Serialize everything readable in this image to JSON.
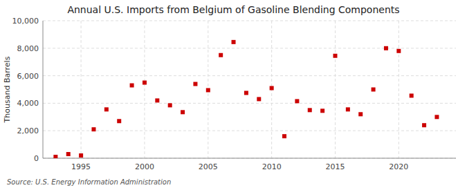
{
  "chart_data": {
    "type": "scatter",
    "title": "Annual U.S. Imports from Belgium of Gasoline Blending Components",
    "y_label": "Thousand Barrels",
    "annotation": "Source: U.S. Energy Information Administration",
    "x": [
      1993,
      1994,
      1995,
      1996,
      1997,
      1998,
      1999,
      2000,
      2001,
      2002,
      2003,
      2004,
      2005,
      2006,
      2007,
      2008,
      2009,
      2010,
      2011,
      2012,
      2013,
      2014,
      2015,
      2016,
      2017,
      2018,
      2019,
      2020,
      2021,
      2022,
      2023
    ],
    "values": [
      100,
      300,
      200,
      2100,
      3550,
      2700,
      5300,
      5500,
      4200,
      3850,
      3350,
      5400,
      4950,
      7500,
      8450,
      4750,
      4300,
      5100,
      1600,
      4150,
      3500,
      3450,
      7450,
      3550,
      3200,
      5000,
      8000,
      7800,
      4550,
      2400,
      3000
    ],
    "color": "#cc0000",
    "marker": "square",
    "xlim": [
      1992,
      2024.5
    ],
    "ylim": [
      0,
      10000
    ],
    "xticks": [
      1995,
      2000,
      2005,
      2010,
      2015,
      2020
    ],
    "yticks": [
      0,
      {
        "value": 2000,
        "label": "2,000"
      },
      {
        "value": 4000,
        "label": "4,000"
      },
      {
        "value": 6000,
        "label": "6,000"
      },
      {
        "value": 8000,
        "label": "8,000"
      },
      {
        "value": 10000,
        "label": "10,000"
      }
    ],
    "grid": true
  }
}
